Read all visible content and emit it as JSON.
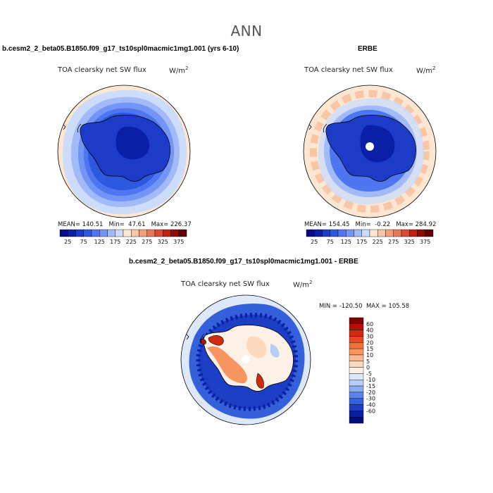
{
  "figure": {
    "title": "ANN"
  },
  "panels": [
    {
      "id": "model",
      "title": "b.cesm2_2_beta05.B1850.f09_g17_ts10spl0macmic1mg1.001 (yrs 6-10)",
      "variable": "TOA clearsky net SW flux",
      "units_base": "W/m",
      "units_exp": "2",
      "stats": "MEAN= 140.51   Min=  47.61   Max= 226.37"
    },
    {
      "id": "obs",
      "title": "ERBE",
      "variable": "TOA clearsky net SW flux",
      "units_base": "W/m",
      "units_exp": "2",
      "stats": "MEAN= 154.45   Min=  -0.22   Max= 284.92"
    },
    {
      "id": "diff",
      "title": "b.cesm2_2_beta05.B1850.f09_g17_ts10spl0macmic1mg1.001 - ERBE",
      "variable": "TOA clearsky net SW flux",
      "units_base": "W/m",
      "units_exp": "2",
      "stats": "MIN = -120.50  MAX = 105.58"
    }
  ],
  "chart_data": [
    {
      "type": "heatmap",
      "projection": "south polar stereographic",
      "title": "b.cesm2_2_beta05.B1850.f09_g17_ts10spl0macmic1mg1.001 (yrs 6-10)",
      "variable": "TOA clearsky net SW flux",
      "units": "W/m2",
      "mean": 140.51,
      "min": 47.61,
      "max": 226.37,
      "colorbar": {
        "orientation": "horizontal",
        "ticks": [
          "25",
          "75",
          "125",
          "175",
          "225",
          "275",
          "325",
          "375"
        ],
        "colors": [
          "#08088c",
          "#0a1fa8",
          "#1c3cc8",
          "#2d58e0",
          "#4d76f0",
          "#7396f6",
          "#a2baf8",
          "#ccdcfa",
          "#fde6d2",
          "#f8c6a4",
          "#f3a07a",
          "#ea7654",
          "#d94a30",
          "#bc2410",
          "#8e0a04",
          "#600000"
        ]
      }
    },
    {
      "type": "heatmap",
      "projection": "south polar stereographic",
      "title": "ERBE",
      "variable": "TOA clearsky net SW flux",
      "units": "W/m2",
      "mean": 154.45,
      "min": -0.22,
      "max": 284.92,
      "colorbar": {
        "orientation": "horizontal",
        "ticks": [
          "25",
          "75",
          "125",
          "175",
          "225",
          "275",
          "325",
          "375"
        ],
        "colors": [
          "#08088c",
          "#0a1fa8",
          "#1c3cc8",
          "#2d58e0",
          "#4d76f0",
          "#7396f6",
          "#a2baf8",
          "#ccdcfa",
          "#fde6d2",
          "#f8c6a4",
          "#f3a07a",
          "#ea7654",
          "#d94a30",
          "#bc2410",
          "#8e0a04",
          "#600000"
        ]
      }
    },
    {
      "type": "heatmap",
      "projection": "south polar stereographic",
      "title": "b.cesm2_2_beta05.B1850.f09_g17_ts10spl0macmic1mg1.001 - ERBE",
      "variable": "TOA clearsky net SW flux",
      "units": "W/m2",
      "min": -120.5,
      "max": 105.58,
      "colorbar": {
        "orientation": "vertical",
        "ticks": [
          "60",
          "40",
          "30",
          "20",
          "15",
          "10",
          "5",
          "0",
          "-5",
          "-10",
          "-15",
          "-20",
          "-30",
          "-40",
          "-60"
        ],
        "colors": [
          "#800000",
          "#b01408",
          "#d02c10",
          "#e64a22",
          "#f2703c",
          "#f79460",
          "#fab890",
          "#fcd8bc",
          "#fdf0e6",
          "#dde9fb",
          "#b6cdf7",
          "#8aabf2",
          "#5b84ea",
          "#3560dc",
          "#1c3ec4",
          "#0a1ea2",
          "#050c80"
        ]
      }
    }
  ]
}
